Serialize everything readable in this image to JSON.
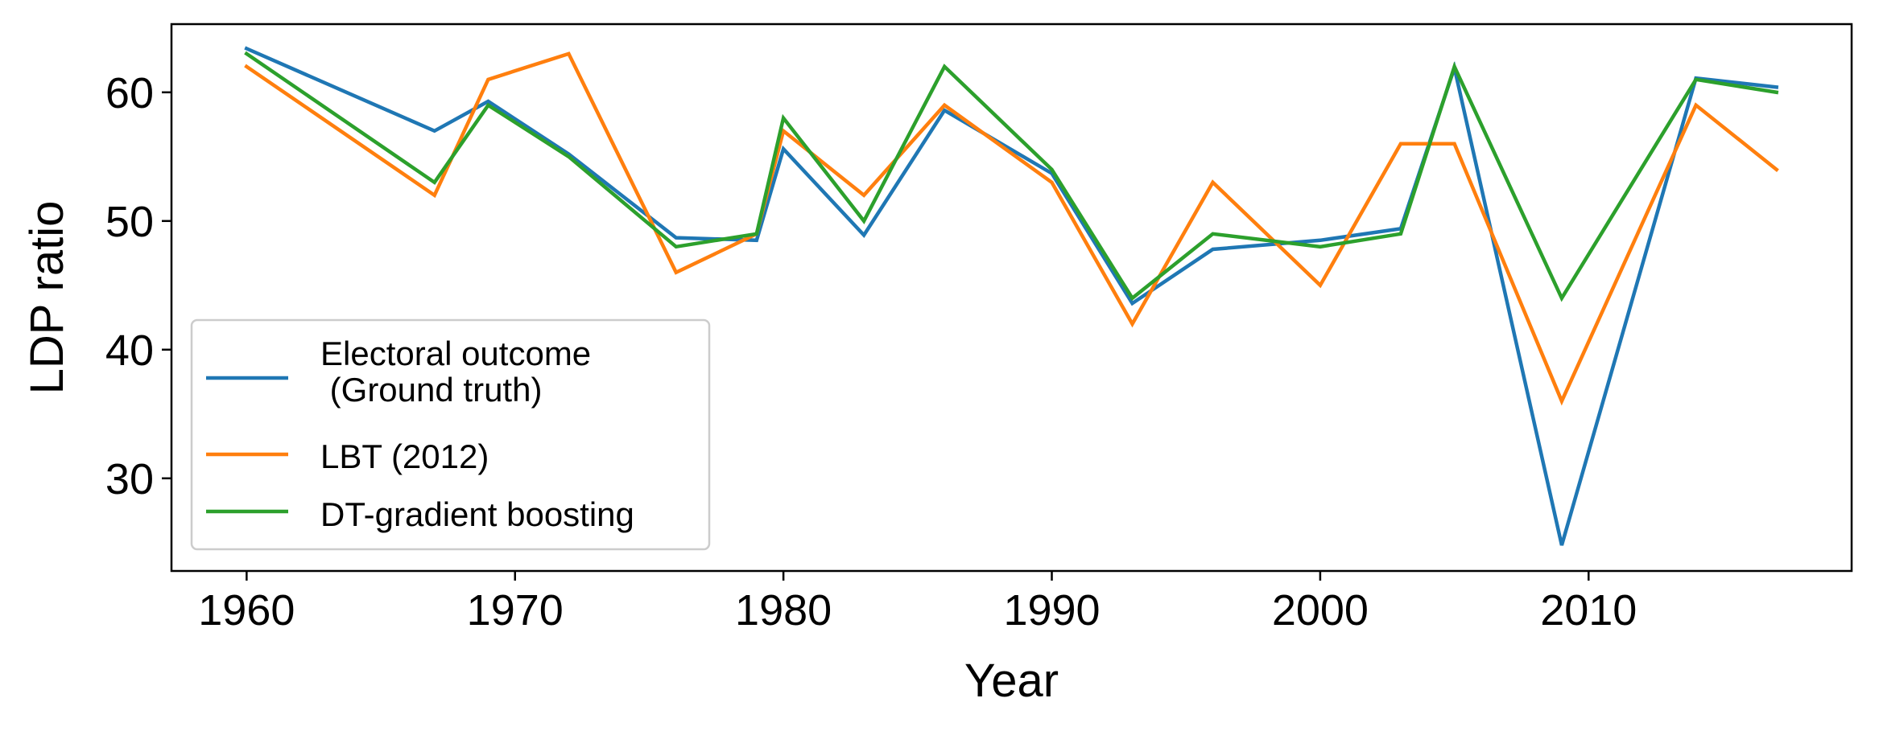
{
  "chart_data": {
    "type": "line",
    "xlabel": "Year",
    "ylabel": "LDP ratio",
    "xlim": [
      1957.2,
      2019.8
    ],
    "ylim": [
      22.8,
      65.3
    ],
    "xticks": [
      1960,
      1970,
      1980,
      1990,
      2000,
      2010
    ],
    "yticks": [
      30,
      40,
      50,
      60
    ],
    "grid": false,
    "legend_position": "lower-left",
    "series": [
      {
        "name": "Electoral outcome\n (Ground truth)",
        "color": "#1f77b4",
        "x": [
          1960,
          1967,
          1969,
          1972,
          1976,
          1979,
          1980,
          1983,
          1986,
          1990,
          1993,
          1996,
          2000,
          2003,
          2005,
          2009,
          2014,
          2017
        ],
        "y": [
          63.4,
          57.0,
          59.3,
          55.2,
          48.7,
          48.5,
          55.6,
          48.9,
          58.6,
          53.7,
          43.6,
          47.8,
          48.5,
          49.4,
          61.9,
          24.8,
          61.1,
          60.4
        ]
      },
      {
        "name": "LBT (2012)",
        "color": "#ff7f0e",
        "x": [
          1960,
          1967,
          1969,
          1972,
          1976,
          1979,
          1980,
          1983,
          1986,
          1990,
          1993,
          1996,
          2000,
          2003,
          2005,
          2009,
          2014,
          2017
        ],
        "y": [
          62.0,
          52.0,
          61.0,
          63.0,
          46.0,
          49.0,
          57.0,
          52.0,
          59.0,
          53.0,
          42.0,
          53.0,
          45.0,
          56.0,
          56.0,
          36.0,
          59.0,
          54.0
        ]
      },
      {
        "name": "DT-gradient boosting",
        "color": "#2ca02c",
        "x": [
          1960,
          1967,
          1969,
          1972,
          1976,
          1979,
          1980,
          1983,
          1986,
          1990,
          1993,
          1996,
          2000,
          2003,
          2005,
          2009,
          2014,
          2017
        ],
        "y": [
          63.0,
          53.0,
          59.0,
          55.0,
          48.0,
          49.0,
          58.0,
          50.0,
          62.0,
          54.0,
          44.0,
          49.0,
          48.0,
          49.0,
          62.0,
          44.0,
          61.0,
          60.0
        ]
      }
    ]
  }
}
